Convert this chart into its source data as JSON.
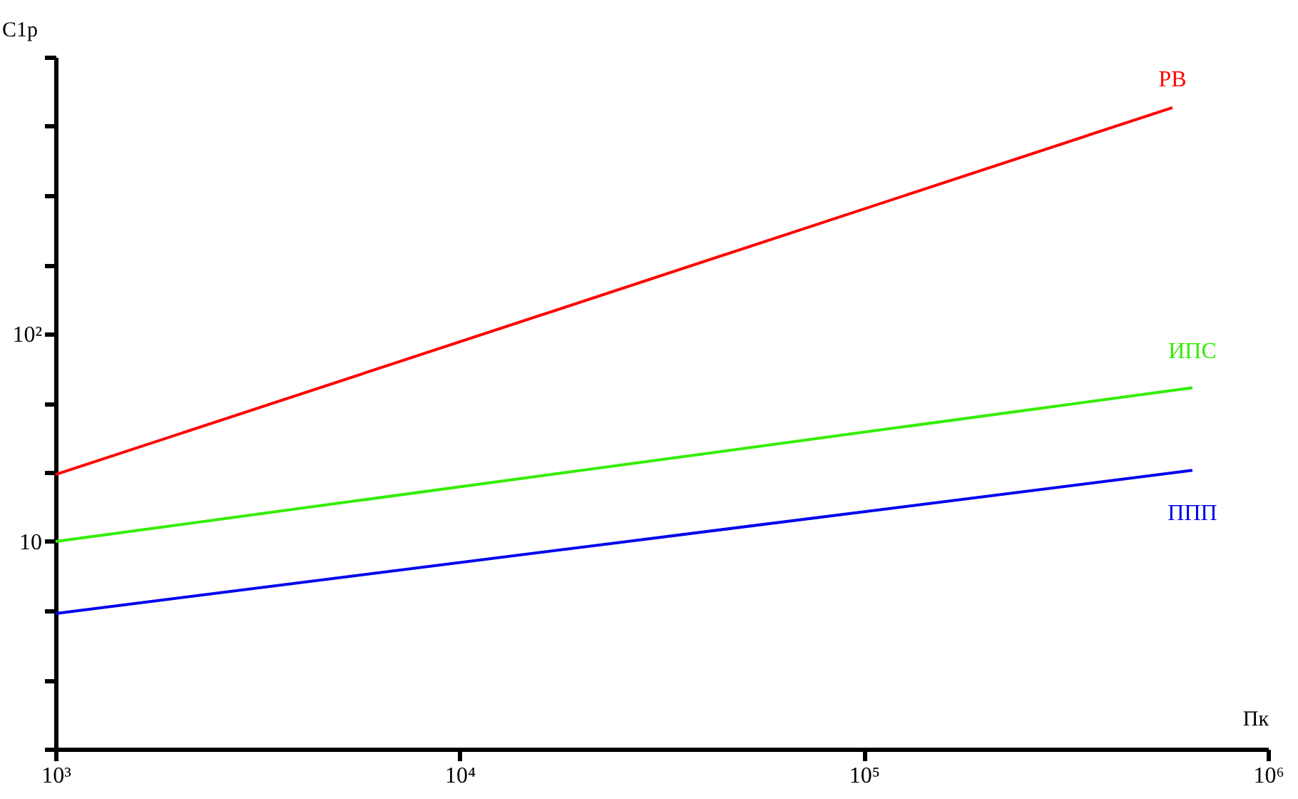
{
  "chart_data": {
    "type": "line",
    "xlabel": "Пк",
    "ylabel": "C1p",
    "log": "xy",
    "grid": false,
    "legend": false,
    "marker": "none",
    "line_style": "solid",
    "xlim": [
      1000,
      1000000
    ],
    "xticks": [
      {
        "value": 1000,
        "label": "10³"
      },
      {
        "value": 10000,
        "label": "10⁴"
      },
      {
        "value": 100000,
        "label": "10⁵"
      },
      {
        "value": 1000000,
        "label": "10⁶"
      }
    ],
    "ylim": [
      1,
      2154
    ],
    "yticks": [
      {
        "value": 1,
        "label": null
      },
      {
        "value": 2.15,
        "label": null
      },
      {
        "value": 4.64,
        "label": null
      },
      10,
      {
        "value": 21.5,
        "label": null
      },
      {
        "value": 46.4,
        "label": null
      },
      {
        "value": 100,
        "label": "10²"
      },
      {
        "value": 215,
        "label": null
      },
      {
        "value": 464,
        "label": null
      },
      {
        "value": 1000,
        "label": null
      },
      {
        "value": 2154,
        "label": null
      }
    ],
    "series": [
      {
        "name": "РВ",
        "color": "#ff0000",
        "x": [
          1000,
          580000
        ],
        "values": [
          21,
          1230
        ]
      },
      {
        "name": "ИПС",
        "color": "#33ee00",
        "x": [
          1000,
          650000
        ],
        "values": [
          10,
          55
        ]
      },
      {
        "name": "ППП",
        "color": "#0000ee",
        "x": [
          1000,
          650000
        ],
        "values": [
          4.5,
          22
        ]
      }
    ]
  }
}
